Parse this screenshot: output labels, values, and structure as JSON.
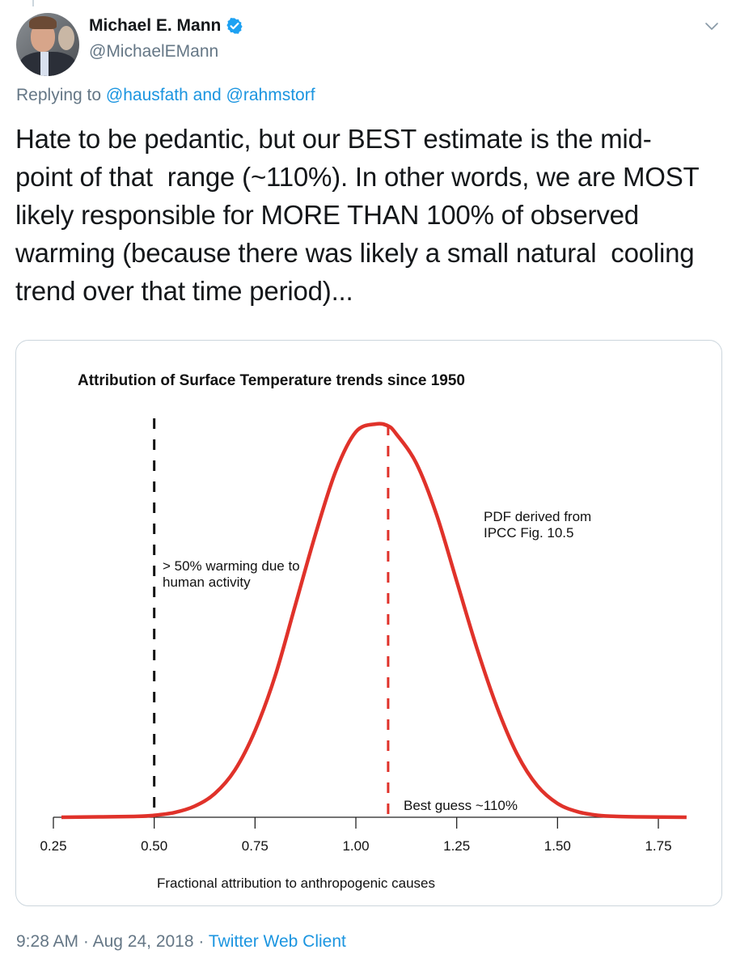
{
  "author": {
    "name": "Michael E. Mann",
    "handle": "@MichaelEMann",
    "verified": true
  },
  "reply": {
    "prefix": "Replying to",
    "mention1": "@hausfath",
    "connector": "and",
    "mention2": "@rahmstorf"
  },
  "tweet": {
    "lines": [
      "Hate to be pedantic, but our BEST estimate is the mid-",
      "point of that  range (~110%). In other words, we are MOST",
      "likely responsible for MORE THAN 100% of observed",
      "warming (because there was likely a small natural  cooling",
      "trend over that time period)..."
    ]
  },
  "footer": {
    "time": "9:28 AM",
    "separator1": "·",
    "date": "Aug 24, 2018",
    "separator2": "·",
    "client": "Twitter Web Client"
  },
  "colors": {
    "accent": "#1b95e0",
    "muted": "#657786",
    "curve": "#e0322a"
  },
  "icons": {
    "verified": "verified-badge-icon",
    "more": "chevron-down-icon"
  },
  "chart_data": {
    "type": "line",
    "title": "Attribution of Surface Temperature trends since 1950",
    "xlabel": "Fractional attribution to anthropogenic causes",
    "ylabel": "",
    "xlim": [
      0.25,
      1.8
    ],
    "ylim": [
      0,
      1.0
    ],
    "x_ticks": [
      "0.25",
      "0.50",
      "0.75",
      "1.00",
      "1.25",
      "1.50",
      "1.75"
    ],
    "x_tick_values": [
      0.25,
      0.5,
      0.75,
      1.0,
      1.25,
      1.5,
      1.75
    ],
    "series": [
      {
        "name": "PDF derived from IPCC Fig. 10.5",
        "x": [
          0.27,
          0.45,
          0.5,
          0.55,
          0.6,
          0.65,
          0.7,
          0.75,
          0.8,
          0.85,
          0.9,
          0.95,
          1.0,
          1.05,
          1.08,
          1.1,
          1.15,
          1.2,
          1.25,
          1.3,
          1.35,
          1.4,
          1.45,
          1.5,
          1.55,
          1.6,
          1.65,
          1.7,
          1.82
        ],
        "values": [
          0.0,
          0.002,
          0.005,
          0.012,
          0.028,
          0.06,
          0.12,
          0.22,
          0.36,
          0.54,
          0.72,
          0.88,
          0.98,
          1.0,
          0.995,
          0.975,
          0.9,
          0.77,
          0.6,
          0.43,
          0.28,
          0.16,
          0.08,
          0.035,
          0.014,
          0.005,
          0.002,
          0.001,
          0.0
        ]
      }
    ],
    "reference_lines": [
      {
        "x": 0.5,
        "color": "#000000",
        "style": "dashed",
        "label": "> 50% warming due to human activity",
        "label_lines": [
          "> 50% warming due to",
          "human activity"
        ]
      },
      {
        "x": 1.08,
        "color": "#e0322a",
        "style": "dashed",
        "label": "Best guess ~110%"
      }
    ],
    "annotations": [
      {
        "text_lines": [
          "PDF derived from",
          "IPCC Fig. 10.5"
        ]
      }
    ],
    "grid": false,
    "legend": "none"
  }
}
